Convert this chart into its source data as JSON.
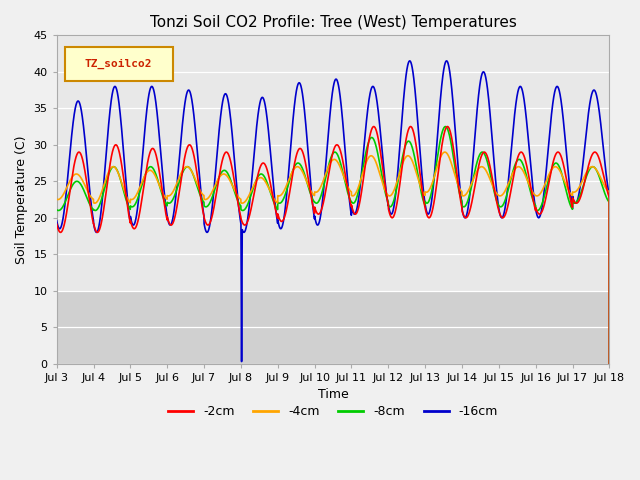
{
  "title": "Tonzi Soil CO2 Profile: Tree (West) Temperatures",
  "xlabel": "Time",
  "ylabel": "Soil Temperature (C)",
  "ylim": [
    0,
    45
  ],
  "x_tick_labels": [
    "Jul 3",
    "Jul 4",
    "Jul 5",
    "Jul 6",
    "Jul 7",
    "Jul 8",
    "Jul 9",
    "Jul 10",
    "Jul 11",
    "Jul 12",
    "Jul 13",
    "Jul 14",
    "Jul 15",
    "Jul 16",
    "Jul 17",
    "Jul 18"
  ],
  "legend_title": "TZ_soilco2",
  "legend_entries": [
    "-2cm",
    "-4cm",
    "-8cm",
    "-16cm"
  ],
  "line_colors": [
    "#ff0000",
    "#ffa500",
    "#00cc00",
    "#0000cc"
  ],
  "title_fontsize": 11,
  "label_fontsize": 9,
  "tick_fontsize": 8,
  "num_days": 15,
  "samples_per_day": 288,
  "spike_day": 5.0,
  "spike_value": 0.3,
  "min_temp": 18.5,
  "peak_temps_16cm": [
    36,
    38,
    38,
    37.5,
    37,
    36.5,
    38.5,
    39,
    38,
    41.5,
    41.5,
    40,
    38,
    38,
    37.5
  ],
  "peak_temps_2cm": [
    29,
    30,
    29.5,
    30,
    29,
    27.5,
    29.5,
    30,
    32.5,
    32.5,
    32.5,
    29,
    29,
    29,
    29
  ],
  "peak_temps_8cm": [
    25,
    27,
    27,
    27,
    26.5,
    26,
    27.5,
    29,
    31,
    30.5,
    32.5,
    29,
    28,
    27.5,
    27
  ],
  "peak_temps_4cm": [
    26,
    27,
    26.5,
    27,
    26,
    25.5,
    27,
    28,
    28.5,
    28.5,
    29,
    27,
    27,
    27,
    27
  ],
  "min_temps_16cm": [
    18.5,
    18,
    19,
    19,
    18,
    18,
    18.5,
    19,
    20.5,
    20.5,
    20.5,
    20,
    20,
    20,
    22
  ],
  "min_temps_2cm": [
    18,
    18,
    18.5,
    19,
    19,
    19,
    19.5,
    20.5,
    20.5,
    20,
    20,
    20,
    20,
    20.5,
    22
  ],
  "min_temps_8cm": [
    21,
    21,
    21.5,
    22,
    21.5,
    21,
    22,
    22,
    22,
    21.5,
    22,
    21.5,
    21.5,
    21,
    22
  ],
  "min_temps_4cm": [
    22.5,
    22,
    22.5,
    23,
    22.5,
    22,
    23,
    23.5,
    23,
    23,
    23.5,
    23,
    23,
    23,
    23.5
  ],
  "phase_shift_16cm": 0.0,
  "phase_shift_2cm": 0.15,
  "phase_shift_8cm": -0.2,
  "phase_shift_4cm": -0.3,
  "plot_bg_upper": "#e8e8e8",
  "plot_bg_lower": "#d0d0d0",
  "fig_bg": "#f0f0f0"
}
